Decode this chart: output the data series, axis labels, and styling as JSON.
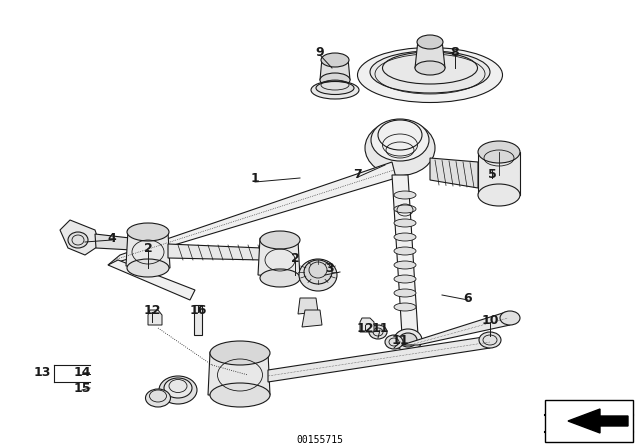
{
  "background_color": "#ffffff",
  "part_number": "00155715",
  "line_color": "#1a1a1a",
  "figsize": [
    6.4,
    4.48
  ],
  "dpi": 100,
  "labels": [
    [
      "1",
      255,
      178,
      9
    ],
    [
      "2",
      148,
      248,
      9
    ],
    [
      "2",
      295,
      258,
      9
    ],
    [
      "3",
      330,
      268,
      9
    ],
    [
      "4",
      112,
      238,
      9
    ],
    [
      "5",
      492,
      175,
      9
    ],
    [
      "6",
      468,
      298,
      9
    ],
    [
      "7",
      358,
      175,
      9
    ],
    [
      "8",
      455,
      52,
      9
    ],
    [
      "9",
      320,
      52,
      9
    ],
    [
      "10",
      490,
      320,
      9
    ],
    [
      "11",
      380,
      328,
      9
    ],
    [
      "11",
      400,
      340,
      9
    ],
    [
      "12",
      152,
      310,
      9
    ],
    [
      "12",
      365,
      328,
      9
    ],
    [
      "13",
      42,
      372,
      9
    ],
    [
      "14",
      82,
      372,
      9
    ],
    [
      "15",
      82,
      388,
      9
    ],
    [
      "16",
      198,
      310,
      9
    ]
  ]
}
